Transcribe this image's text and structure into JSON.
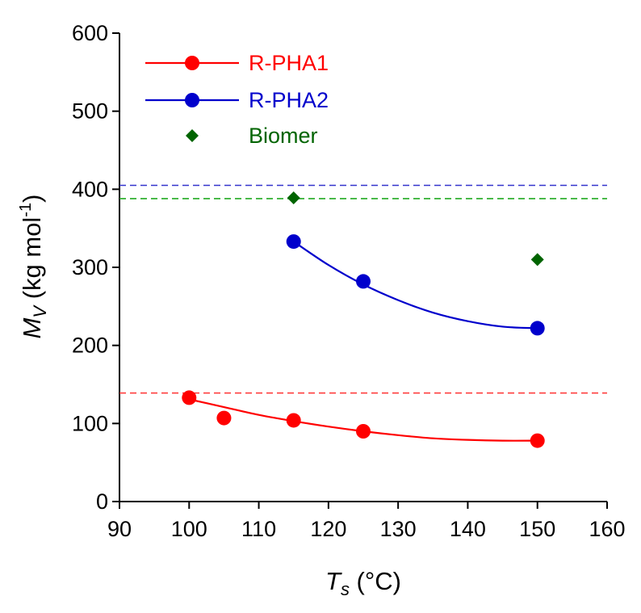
{
  "chart_data": {
    "type": "scatter",
    "title": "",
    "xlabel": {
      "main": "T",
      "sub": "s",
      "unit": "(°C)"
    },
    "ylabel": {
      "main": "M",
      "sub": "V",
      "unit_prefix": "(kg mol",
      "unit_sup": "-1",
      "unit_suffix": ")"
    },
    "xlim": [
      90,
      160
    ],
    "ylim": [
      0,
      600
    ],
    "x_ticks": [
      90,
      100,
      110,
      120,
      130,
      140,
      150,
      160
    ],
    "y_ticks": [
      0,
      100,
      200,
      300,
      400,
      500,
      600
    ],
    "grid": false,
    "legend_position": "top-left",
    "series": [
      {
        "name": "R-PHA1",
        "color": "#ff0000",
        "marker": "circle",
        "line": true,
        "x": [
          100,
          105,
          115,
          125,
          150
        ],
        "y": [
          133,
          107,
          104,
          90,
          78
        ],
        "fit_x": [
          100,
          105,
          110,
          115,
          120,
          125,
          130,
          135,
          140,
          145,
          150
        ],
        "fit_y": [
          131,
          121,
          111,
          103,
          96,
          90,
          85,
          81,
          79,
          78,
          78
        ]
      },
      {
        "name": "R-PHA2",
        "color": "#0000cc",
        "marker": "circle",
        "line": true,
        "x": [
          115,
          125,
          150
        ],
        "y": [
          333,
          282,
          222
        ],
        "fit_x": [
          115,
          120,
          125,
          130,
          135,
          140,
          145,
          150
        ],
        "fit_y": [
          333,
          303,
          278,
          258,
          242,
          231,
          224,
          222
        ]
      },
      {
        "name": "Biomer",
        "color": "#006400",
        "marker": "diamond",
        "line": false,
        "x": [
          115,
          150
        ],
        "y": [
          389,
          310
        ]
      }
    ],
    "reference_lines": [
      {
        "y": 405,
        "color": "#3333cc",
        "style": "dashed"
      },
      {
        "y": 388,
        "color": "#22aa22",
        "style": "dashed"
      },
      {
        "y": 139,
        "color": "#ff3333",
        "style": "dashed"
      }
    ]
  }
}
